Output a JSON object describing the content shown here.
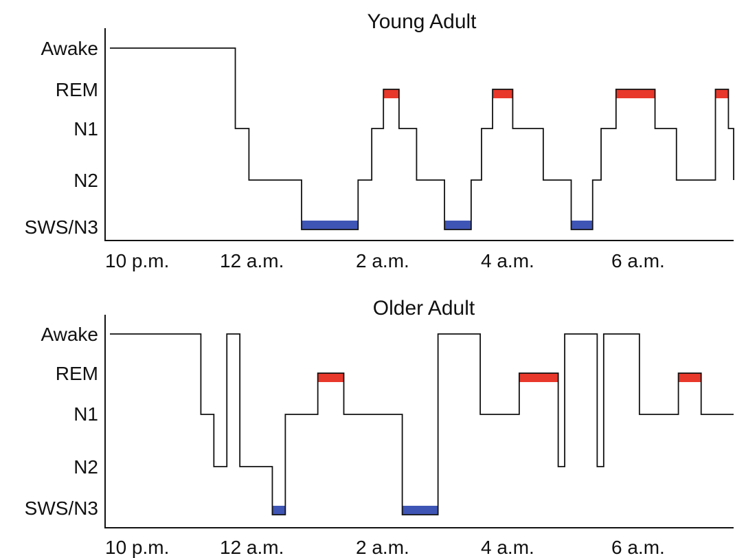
{
  "chart_data": [
    {
      "type": "line",
      "step": true,
      "title": "Young Adult",
      "xlabel": "",
      "ylabel": "",
      "stages": [
        "Awake",
        "REM",
        "N1",
        "N2",
        "SWS/N3"
      ],
      "x_ticks": [
        "10 p.m.",
        "12 a.m.",
        "2 a.m.",
        "4 a.m.",
        "6 a.m."
      ],
      "xlim": [
        0,
        9.6
      ],
      "grid": false,
      "colors": {
        "REM": "#e8382b",
        "SWS/N3": "#3f55b5"
      },
      "x": [
        0,
        1.93,
        2.14,
        2.95,
        3.82,
        4.03,
        4.21,
        4.45,
        4.72,
        5.15,
        5.56,
        5.72,
        5.89,
        6.2,
        6.67,
        7.1,
        7.43,
        7.56,
        7.79,
        8.39,
        8.72,
        9.32,
        9.52,
        9.6
      ],
      "stage": [
        "Awake",
        "N1",
        "N2",
        "SWS/N3",
        "N2",
        "N1",
        "REM",
        "N1",
        "N2",
        "SWS/N3",
        "N2",
        "N1",
        "REM",
        "N1",
        "N2",
        "SWS/N3",
        "N2",
        "N1",
        "REM",
        "N1",
        "N2",
        "REM",
        "N1",
        "N2"
      ]
    },
    {
      "type": "line",
      "step": true,
      "title": "Older Adult",
      "xlabel": "",
      "ylabel": "",
      "stages": [
        "Awake",
        "REM",
        "N1",
        "N2",
        "SWS/N3"
      ],
      "x_ticks": [
        "10 p.m.",
        "12 a.m.",
        "2 a.m.",
        "4 a.m.",
        "6 a.m."
      ],
      "xlim": [
        0,
        9.6
      ],
      "grid": false,
      "colors": {
        "REM": "#e8382b",
        "SWS/N3": "#3f55b5"
      },
      "x": [
        0,
        1.4,
        1.6,
        1.8,
        2.0,
        2.5,
        2.7,
        3.2,
        3.6,
        4.5,
        5.05,
        5.7,
        6.3,
        6.9,
        7.0,
        7.5,
        7.6,
        8.15,
        8.75,
        9.1
      ],
      "stage": [
        "Awake",
        "N1",
        "N2",
        "Awake",
        "N2",
        "SWS/N3",
        "N1",
        "REM",
        "N1",
        "SWS/N3",
        "Awake",
        "N1",
        "REM",
        "N2",
        "Awake",
        "N2",
        "Awake",
        "N1",
        "REM",
        "N1"
      ]
    }
  ]
}
